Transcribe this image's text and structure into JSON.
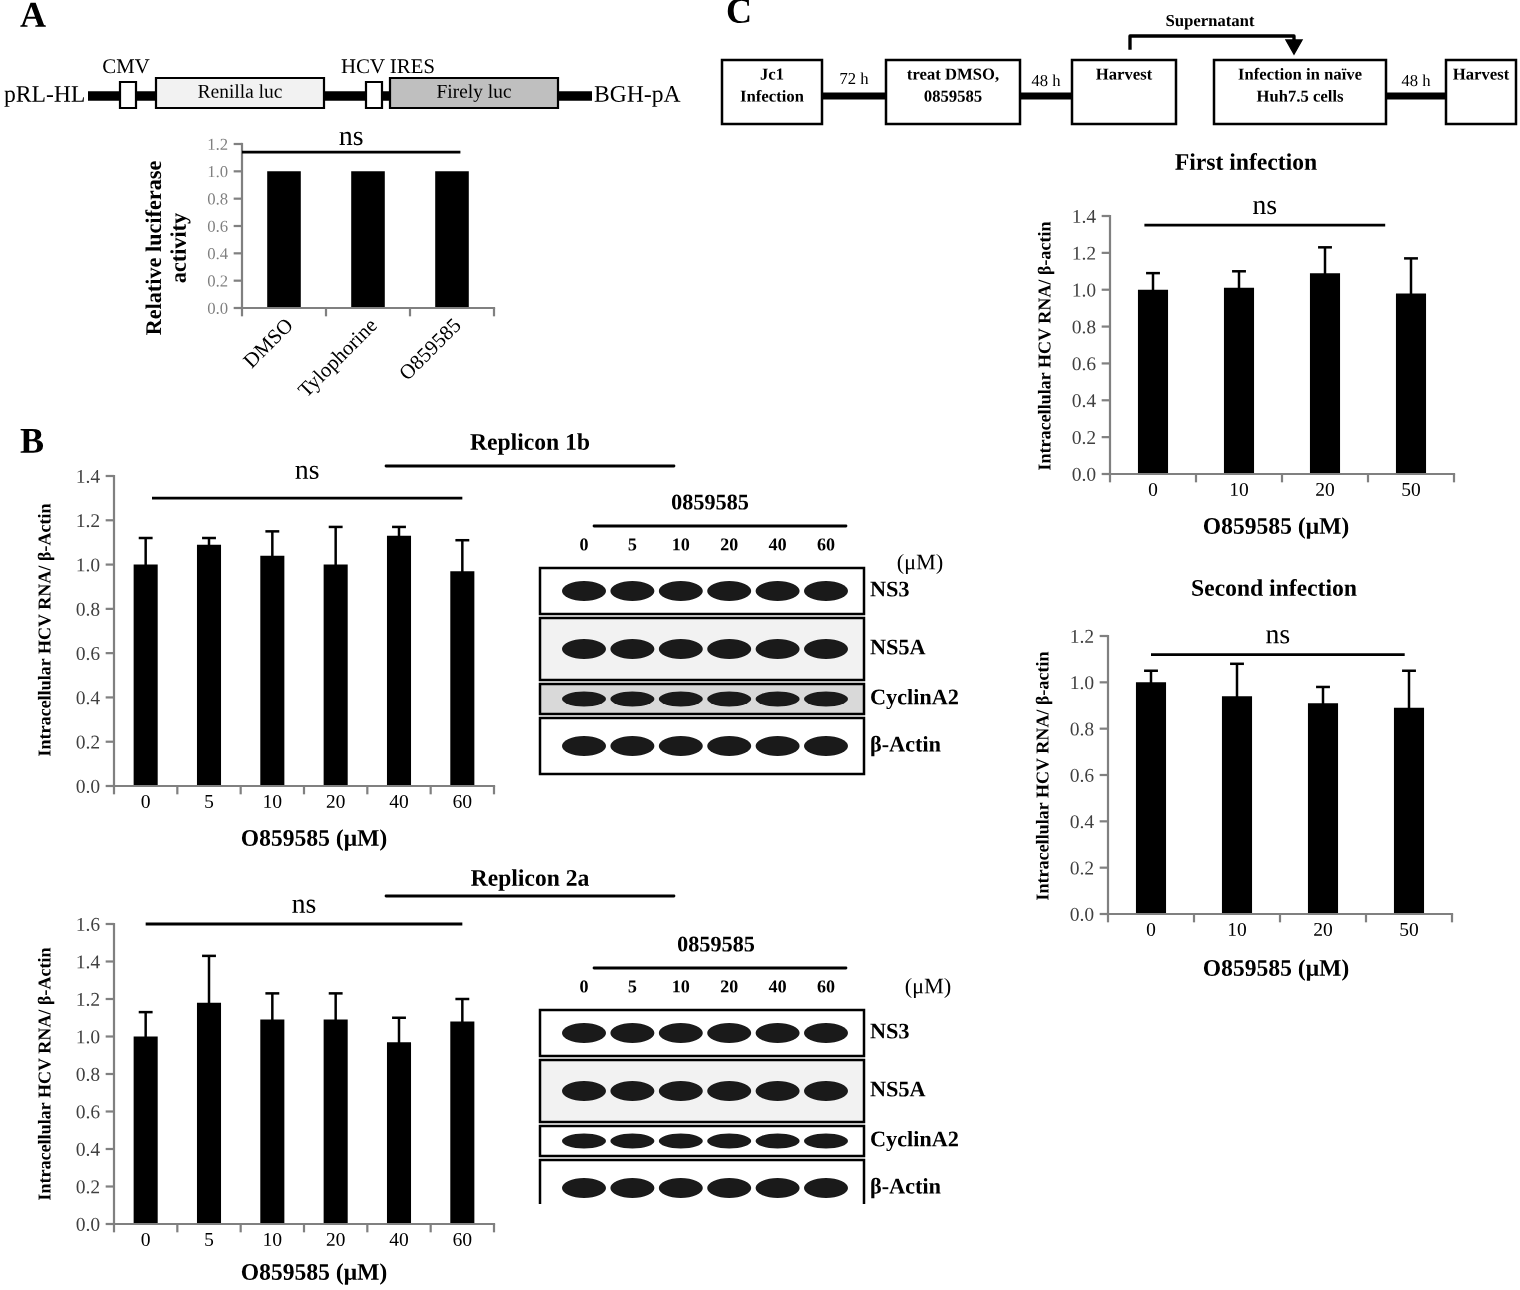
{
  "chart_data": [
    {
      "type": "other",
      "title": "A",
      "annotations": [
        "pRL-HL",
        "CMV",
        "Renilla luc",
        "HCV IRES",
        "Firely luc",
        "BGH-pA"
      ]
    },
    {
      "type": "bar",
      "categories": [
        "DMSO",
        "Tylophorine",
        "O859585"
      ],
      "values": [
        1.0,
        1.0,
        1.0
      ],
      "color": "#000000",
      "ylabel": "Relative luciferase activity",
      "ylim": [
        0,
        1.2
      ],
      "yticks": [
        {
          "value": 0,
          "label": "0.0"
        },
        {
          "value": 0.2,
          "label": "0.2"
        },
        {
          "value": 0.4,
          "label": "0.4"
        },
        {
          "value": 0.6,
          "label": "0.6"
        },
        {
          "value": 0.8,
          "label": "0.8"
        },
        {
          "value": 1,
          "label": "1.0"
        },
        {
          "value": 1.2,
          "label": "1.2"
        }
      ],
      "ref_lines": [
        {
          "axis": "y",
          "value": 1.14,
          "label": "ns",
          "color": "#000000"
        }
      ]
    },
    {
      "type": "other",
      "title": "B"
    },
    {
      "type": "bar",
      "title": "Replicon 1b",
      "categories": [
        "0",
        "5",
        "10",
        "20",
        "40",
        "60"
      ],
      "values": [
        1.0,
        1.09,
        1.04,
        1.0,
        1.13,
        0.97
      ],
      "errors": [
        0.12,
        0.03,
        0.11,
        0.17,
        0.04,
        0.14
      ],
      "color": "#000000",
      "xlabel": "O859585 (μM)",
      "ylabel": "Intracellular HCV RNA/ β-Actin",
      "ylim": [
        0,
        1.4
      ],
      "yticks": [
        {
          "value": 0,
          "label": "0.0"
        },
        {
          "value": 0.2,
          "label": "0.2"
        },
        {
          "value": 0.4,
          "label": "0.4"
        },
        {
          "value": 0.6,
          "label": "0.6"
        },
        {
          "value": 0.8,
          "label": "0.8"
        },
        {
          "value": 1,
          "label": "1.0"
        },
        {
          "value": 1.2,
          "label": "1.2"
        },
        {
          "value": 1.4,
          "label": "1.4"
        }
      ],
      "ref_lines": [
        {
          "axis": "y",
          "value": 1.3,
          "label": "ns",
          "color": "#000000"
        }
      ]
    },
    {
      "type": "other",
      "title": "0859585",
      "categories": [
        "0",
        "5",
        "10",
        "20",
        "40",
        "60"
      ],
      "y_categories": [
        "NS3",
        "NS5A",
        "CyclinA2",
        "β-Actin"
      ],
      "annotations": [
        "(μM)"
      ]
    },
    {
      "type": "bar",
      "title": "Replicon 2a",
      "categories": [
        "0",
        "5",
        "10",
        "20",
        "40",
        "60"
      ],
      "values": [
        1.0,
        1.18,
        1.09,
        1.09,
        0.97,
        1.08
      ],
      "errors": [
        0.13,
        0.25,
        0.14,
        0.14,
        0.13,
        0.12
      ],
      "color": "#000000",
      "xlabel": "O859585 (μM)",
      "ylabel": "Intracellular HCV RNA/ β-Actin",
      "ylim": [
        0,
        1.6
      ],
      "yticks": [
        {
          "value": 0,
          "label": "0.0"
        },
        {
          "value": 0.2,
          "label": "0.2"
        },
        {
          "value": 0.4,
          "label": "0.4"
        },
        {
          "value": 0.6,
          "label": "0.6"
        },
        {
          "value": 0.8,
          "label": "0.8"
        },
        {
          "value": 1,
          "label": "1.0"
        },
        {
          "value": 1.2,
          "label": "1.2"
        },
        {
          "value": 1.4,
          "label": "1.4"
        },
        {
          "value": 1.6,
          "label": "1.6"
        }
      ],
      "ref_lines": [
        {
          "axis": "y",
          "value": 1.6,
          "label": "ns",
          "color": "#000000"
        }
      ]
    },
    {
      "type": "other",
      "title": "0859585",
      "categories": [
        "0",
        "5",
        "10",
        "20",
        "40",
        "60"
      ],
      "y_categories": [
        "NS3",
        "NS5A",
        "CyclinA2",
        "β-Actin"
      ],
      "annotations": [
        "(μM)"
      ]
    },
    {
      "type": "other",
      "title": "C",
      "categories": [
        "Jc1 Infection",
        "treat DMSO, 0859585",
        "Harvest",
        "Infection in naïve Huh7.5 cells",
        "Harvest"
      ],
      "annotations": [
        "72 h",
        "48 h",
        "Supernatant",
        "48 h"
      ]
    },
    {
      "type": "bar",
      "title": "First infection",
      "categories": [
        "0",
        "10",
        "20",
        "50"
      ],
      "values": [
        1.0,
        1.01,
        1.09,
        0.98
      ],
      "errors": [
        0.09,
        0.09,
        0.14,
        0.19
      ],
      "color": "#000000",
      "xlabel": "O859585 (μM)",
      "ylabel": "Intracellular HCV RNA/ β-actin",
      "ylim": [
        0,
        1.4
      ],
      "yticks": [
        {
          "value": 0,
          "label": "0.0"
        },
        {
          "value": 0.2,
          "label": "0.2"
        },
        {
          "value": 0.4,
          "label": "0.4"
        },
        {
          "value": 0.6,
          "label": "0.6"
        },
        {
          "value": 0.8,
          "label": "0.8"
        },
        {
          "value": 1,
          "label": "1.0"
        },
        {
          "value": 1.2,
          "label": "1.2"
        },
        {
          "value": 1.4,
          "label": "1.4"
        }
      ],
      "ref_lines": [
        {
          "axis": "y",
          "value": 1.35,
          "label": "ns",
          "color": "#000000"
        }
      ]
    },
    {
      "type": "bar",
      "title": "Second infection",
      "categories": [
        "0",
        "10",
        "20",
        "50"
      ],
      "values": [
        1.0,
        0.94,
        0.91,
        0.89
      ],
      "errors": [
        0.05,
        0.14,
        0.07,
        0.16
      ],
      "color": "#000000",
      "xlabel": "O859585 (μM)",
      "ylabel": "Intracellular HCV RNA/ β-actin",
      "ylim": [
        0,
        1.2
      ],
      "yticks": [
        {
          "value": 0,
          "label": "0.0"
        },
        {
          "value": 0.2,
          "label": "0.2"
        },
        {
          "value": 0.4,
          "label": "0.4"
        },
        {
          "value": 0.6,
          "label": "0.6"
        },
        {
          "value": 0.8,
          "label": "0.8"
        },
        {
          "value": 1,
          "label": "1.0"
        },
        {
          "value": 1.2,
          "label": "1.2"
        }
      ],
      "ref_lines": [
        {
          "axis": "y",
          "value": 1.12,
          "label": "ns",
          "color": "#000000"
        }
      ]
    }
  ]
}
